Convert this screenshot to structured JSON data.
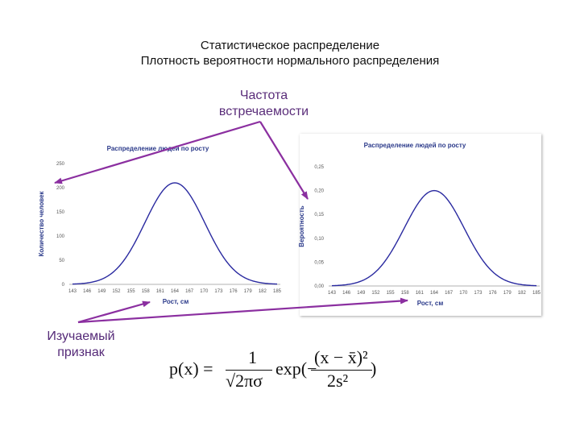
{
  "slide": {
    "title_line1": "Статистическое распределение",
    "title_line2": "Плотность вероятности нормального распределения",
    "label_frequency_line1": "Частота",
    "label_frequency_line2": "встречаемости",
    "label_feature_line1": "Изучаемый",
    "label_feature_line2": "признак"
  },
  "colors": {
    "arrow": "#8b2fa0",
    "curve": "#2a2aa0",
    "chart_text": "#2b3a8a",
    "label_text": "#5a2d7a"
  },
  "formula": {
    "lhs": "p(x) =",
    "numerator": "1",
    "denominator": "√2πσ",
    "exp": "exp(−",
    "num2": "(x − x̄)²",
    "den2": "2s²",
    "close": ")"
  },
  "chart_data": [
    {
      "type": "line",
      "title": "Распределение людей по росту",
      "xlabel": "Рост, см",
      "ylabel": "Количество человек",
      "categories": [
        "143",
        "146",
        "149",
        "152",
        "155",
        "158",
        "161",
        "164",
        "167",
        "170",
        "173",
        "176",
        "179",
        "182",
        "185"
      ],
      "y_ticks": [
        "0",
        "50",
        "100",
        "150",
        "200",
        "250"
      ],
      "ylim": [
        0,
        250
      ],
      "series": [
        {
          "mean": 164,
          "values": [
            0.2,
            1.4,
            6.3,
            22,
            58,
            118,
            184,
            210,
            184,
            118,
            58,
            22,
            6.3,
            1.4,
            0.2
          ]
        }
      ],
      "grid": false
    },
    {
      "type": "line",
      "title": "Распределение людей по росту",
      "xlabel": "Рост, см",
      "ylabel": "Вероятность",
      "categories": [
        "143",
        "146",
        "149",
        "152",
        "155",
        "158",
        "161",
        "164",
        "167",
        "170",
        "173",
        "176",
        "179",
        "182",
        "185"
      ],
      "y_ticks": [
        "0,00",
        "0,05",
        "0,10",
        "0,15",
        "0,20",
        "0,25"
      ],
      "ylim": [
        0,
        0.25
      ],
      "series": [
        {
          "mean": 164,
          "values": [
            0.0002,
            0.0014,
            0.0063,
            0.022,
            0.058,
            0.118,
            0.184,
            0.2,
            0.184,
            0.118,
            0.058,
            0.022,
            0.0063,
            0.0014,
            0.0002
          ]
        }
      ],
      "grid": false
    }
  ]
}
